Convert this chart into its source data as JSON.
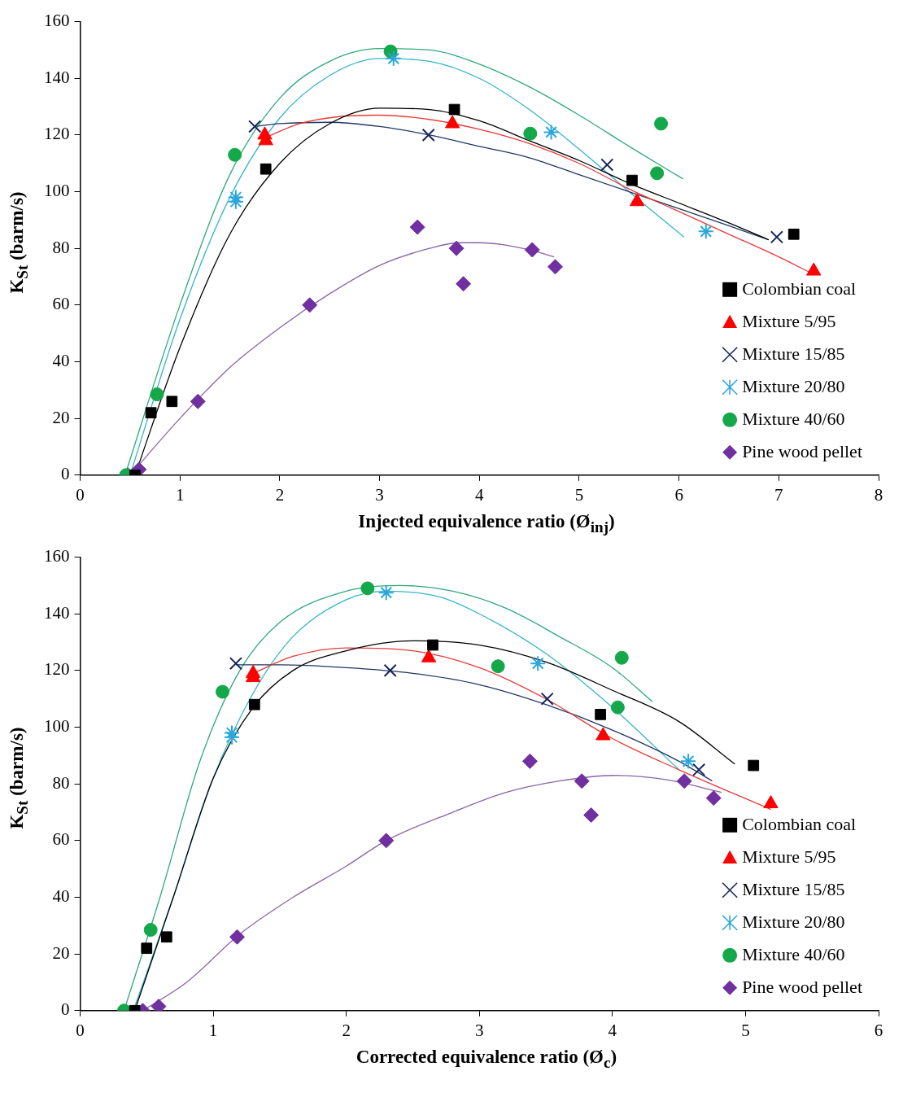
{
  "chart_data": [
    {
      "type": "scatter",
      "xlabel": "Injected equivalence ratio (Ø$_{inj}$)",
      "ylabel": "K$_{St}$ (barm/s)",
      "xlim": [
        0,
        8
      ],
      "xticks": [
        0,
        1,
        2,
        3,
        4,
        5,
        6,
        7,
        8
      ],
      "ylim": [
        0,
        160
      ],
      "yticks": [
        0,
        20,
        40,
        60,
        80,
        100,
        120,
        140,
        160
      ],
      "legend": "bottom right",
      "series": [
        {
          "type": "line",
          "color": "#000000",
          "marker": "none",
          "x": [
            0.55,
            1,
            1.5,
            2,
            2.5,
            3,
            3.5,
            4,
            4.5,
            5,
            5.5,
            6,
            6.5,
            6.9
          ],
          "values": [
            0,
            45,
            85,
            110,
            124,
            129.5,
            129,
            125,
            118,
            111,
            103,
            96,
            89,
            83
          ]
        },
        {
          "type": "line",
          "color": "#e8393a",
          "marker": "none",
          "x": [
            1.85,
            2.2,
            2.6,
            3,
            3.5,
            4,
            4.5,
            5,
            5.5,
            6,
            6.5,
            7,
            7.34
          ],
          "values": [
            119,
            124,
            126.5,
            127,
            125.5,
            122,
            117,
            110,
            101,
            93,
            85,
            77,
            71
          ]
        },
        {
          "type": "line",
          "color": "#1f3864",
          "marker": "none",
          "x": [
            1.75,
            2,
            2.5,
            3,
            3.5,
            4,
            4.5,
            5,
            5.5,
            6,
            6.5,
            6.9
          ],
          "values": [
            123,
            124,
            124.5,
            123,
            120,
            116,
            112,
            106,
            100,
            94,
            88,
            83
          ]
        },
        {
          "type": "line",
          "color": "#33b5c8",
          "marker": "none",
          "x": [
            0.5,
            1,
            1.5,
            2,
            2.5,
            3,
            3.5,
            4,
            4.5,
            5,
            5.5,
            6.05
          ],
          "values": [
            0,
            55,
            98,
            126,
            141,
            147,
            146,
            140,
            129,
            115,
            100,
            84
          ]
        },
        {
          "type": "line",
          "color": "#2fa87a",
          "marker": "none",
          "x": [
            0.45,
            1,
            1.5,
            2,
            2.5,
            3,
            3.5,
            4,
            4.5,
            5,
            5.5,
            6.04
          ],
          "values": [
            0,
            60,
            106,
            133,
            146,
            150.5,
            150,
            145,
            137,
            127,
            116,
            104.5
          ]
        },
        {
          "type": "line",
          "color": "#8b64a8",
          "marker": "none",
          "x": [
            0.5,
            1,
            1.5,
            2,
            2.5,
            3,
            3.5,
            3.8,
            4,
            4.5,
            4.75
          ],
          "values": [
            0,
            20,
            38,
            52,
            64,
            74,
            80,
            82,
            82,
            79.5,
            77
          ]
        },
        {
          "name": "Colombian coal",
          "color": "#000000",
          "marker": "square",
          "x": [
            0.55,
            0.71,
            0.92,
            1.86,
            3.75,
            5.53,
            7.15
          ],
          "values": [
            0,
            22,
            26,
            108,
            129,
            104,
            85
          ]
        },
        {
          "name": "Mixture 5/95",
          "color": "#ff0000",
          "marker": "triangle",
          "x": [
            1.85,
            1.86,
            3.73,
            5.58,
            7.35
          ],
          "values": [
            120,
            118,
            124,
            96.5,
            72
          ]
        },
        {
          "name": "Mixture 15/85",
          "color": "#17255a",
          "marker": "cross",
          "x": [
            1.75,
            3.49,
            5.28,
            6.98
          ],
          "values": [
            123,
            120,
            109.5,
            84
          ]
        },
        {
          "name": "Mixture 20/80",
          "color": "#2aa6dc",
          "x": [
            1.56,
            1.56,
            3.14,
            4.72,
            6.27
          ],
          "values": [
            98,
            96.5,
            147,
            121,
            86
          ]
        },
        {
          "name": "Mixture 40/60",
          "color": "#14a84b",
          "marker": "circle",
          "x": [
            0.46,
            0.77,
            1.55,
            3.11,
            4.51,
            5.78,
            5.82
          ],
          "values": [
            0,
            28.5,
            113,
            149.5,
            120.5,
            106.5,
            124
          ]
        },
        {
          "name": "Pine wood pellet",
          "color": "#7030a0",
          "marker": "diamond",
          "x": [
            0.48,
            0.59,
            1.18,
            2.3,
            3.38,
            3.77,
            3.84,
            4.53,
            4.76
          ],
          "values": [
            0,
            2,
            26,
            60,
            87.5,
            80,
            67.5,
            79.5,
            73.5
          ]
        }
      ]
    },
    {
      "type": "scatter",
      "xlabel": "Corrected equivalence ratio (Ø$_{c}$)",
      "ylabel": "K$_{St}$ (barm/s)",
      "xlim": [
        0,
        6
      ],
      "xticks": [
        0,
        1,
        2,
        3,
        4,
        5,
        6
      ],
      "ylim": [
        0,
        160
      ],
      "yticks": [
        0,
        20,
        40,
        60,
        80,
        100,
        120,
        140,
        160
      ],
      "legend": "bottom right",
      "series": [
        {
          "type": "line",
          "color": "#000000",
          "marker": "none",
          "x": [
            0.41,
            0.7,
            1,
            1.3,
            1.6,
            2,
            2.5,
            3,
            3.5,
            4,
            4.5,
            4.92
          ],
          "values": [
            0,
            40,
            82,
            107,
            120,
            127,
            130.5,
            129,
            123,
            113,
            102,
            87
          ]
        },
        {
          "type": "line",
          "color": "#e8393a",
          "marker": "none",
          "x": [
            1.3,
            1.6,
            2,
            2.5,
            3,
            3.5,
            4,
            4.5,
            5.19
          ],
          "values": [
            119,
            125,
            128,
            127,
            121,
            110,
            96,
            85,
            71
          ]
        },
        {
          "type": "line",
          "color": "#1f3864",
          "marker": "none",
          "x": [
            1.17,
            1.5,
            2,
            2.5,
            3,
            3.5,
            4,
            4.5,
            4.75
          ],
          "values": [
            122,
            122,
            121,
            119,
            115,
            108,
            99,
            88,
            81
          ]
        },
        {
          "type": "line",
          "color": "#33b5c8",
          "marker": "none",
          "x": [
            0.4,
            0.7,
            1,
            1.3,
            1.6,
            2,
            2.3,
            2.7,
            3,
            3.5,
            4,
            4.5
          ],
          "values": [
            0,
            40,
            82,
            112,
            132,
            145,
            148,
            146,
            140,
            126,
            107,
            85
          ]
        },
        {
          "type": "line",
          "color": "#2fa87a",
          "marker": "none",
          "x": [
            0.33,
            0.6,
            0.9,
            1.2,
            1.5,
            2,
            2.4,
            2.8,
            3.2,
            3.6,
            4,
            4.3
          ],
          "values": [
            0,
            40,
            88,
            120,
            137,
            148,
            150,
            148,
            142,
            132,
            121,
            109
          ]
        },
        {
          "type": "line",
          "color": "#8b64a8",
          "marker": "none",
          "x": [
            0.47,
            0.8,
            1.2,
            1.6,
            2,
            2.3,
            2.8,
            3.2,
            3.6,
            4,
            4.4,
            4.82
          ],
          "values": [
            0,
            10,
            27,
            40,
            51,
            60,
            70,
            77,
            81,
            83,
            81.5,
            77
          ]
        },
        {
          "name": "Colombian coal",
          "color": "#000000",
          "marker": "square",
          "x": [
            0.41,
            0.5,
            0.65,
            1.31,
            2.65,
            3.91,
            5.06
          ],
          "values": [
            0,
            22,
            26,
            108,
            129,
            104.5,
            86.5
          ]
        },
        {
          "name": "Mixture 5/95",
          "color": "#ff0000",
          "marker": "triangle",
          "x": [
            1.3,
            1.3,
            2.62,
            3.93,
            5.19
          ],
          "values": [
            119,
            117.5,
            124.5,
            97,
            73
          ]
        },
        {
          "name": "Mixture 15/85",
          "color": "#17255a",
          "marker": "cross",
          "x": [
            1.17,
            2.33,
            3.51,
            4.65
          ],
          "values": [
            122.5,
            120,
            110,
            85
          ]
        },
        {
          "name": "Mixture 20/80",
          "color": "#2aa6dc",
          "x": [
            1.14,
            1.14,
            2.3,
            3.44,
            4.57
          ],
          "values": [
            98,
            96.5,
            147.5,
            122.5,
            88
          ]
        },
        {
          "name": "Mixture 40/60",
          "color": "#14a84b",
          "marker": "circle",
          "x": [
            0.33,
            0.53,
            1.07,
            2.16,
            3.14,
            4.04,
            4.07
          ],
          "values": [
            0,
            28.5,
            112.5,
            149,
            121.5,
            107,
            124.5
          ]
        },
        {
          "name": "Pine wood pellet",
          "color": "#7030a0",
          "marker": "diamond",
          "x": [
            0.47,
            0.59,
            1.18,
            2.3,
            3.38,
            3.77,
            3.84,
            4.54,
            4.76
          ],
          "values": [
            0,
            1.5,
            26,
            60,
            88,
            81,
            69,
            81,
            75
          ]
        }
      ]
    }
  ]
}
